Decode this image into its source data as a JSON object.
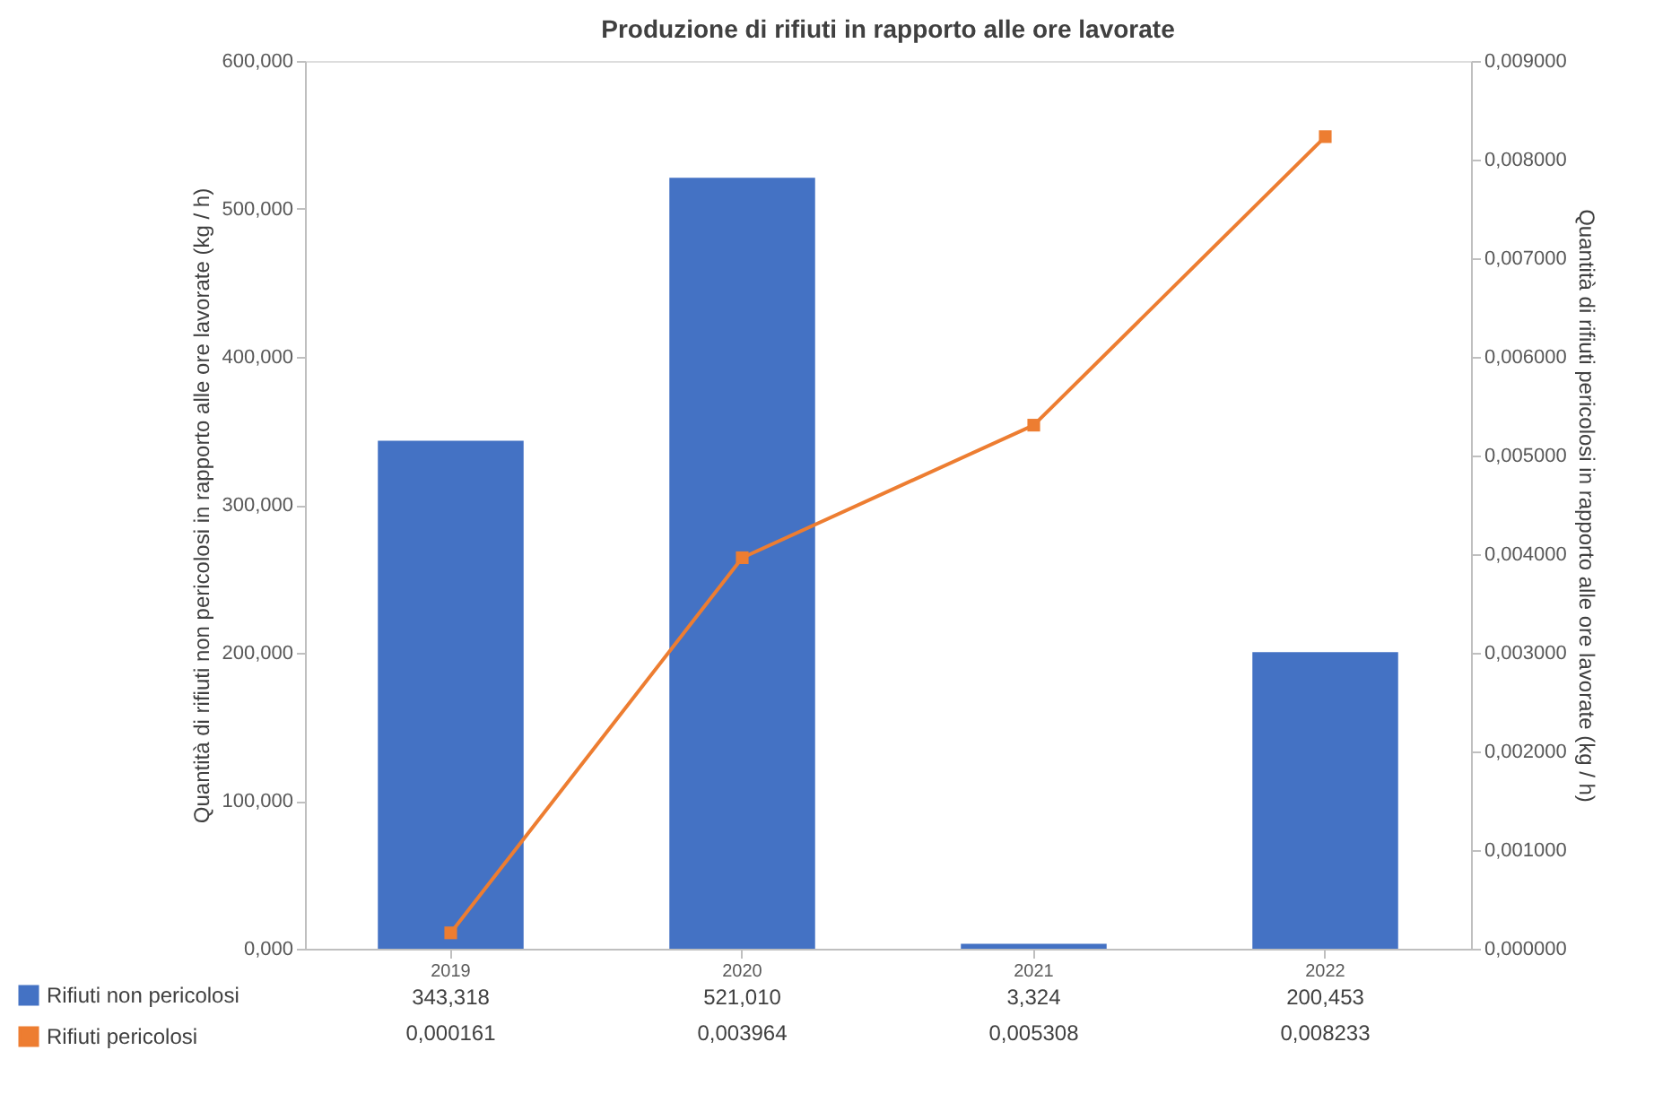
{
  "chart_data": {
    "type": "bar",
    "title": "Produzione di rifiuti in rapporto alle ore lavorate",
    "categories": [
      "2019",
      "2020",
      "2021",
      "2022"
    ],
    "ylabel": "Quantità di rifiuti non pericolosi in rapporto alle ore lavorate (kg / h)",
    "y2label": "Quantità di rifiuti pericolosi in rapporto alle ore lavorate (kg / h)",
    "series": [
      {
        "name": "Rifiuti non pericolosi",
        "color": "#4472c4",
        "values": [
          343.318,
          521.01,
          3.324,
          200.453
        ],
        "value_labels": [
          "343,318",
          "521,010",
          "3,324",
          "200,453"
        ]
      },
      {
        "name": "Rifiuti pericolosi",
        "type": "line",
        "axis": "y2",
        "color": "#ed7d31",
        "marker": "square",
        "values": [
          0.000161,
          0.003964,
          0.005308,
          0.008233
        ],
        "value_labels": [
          "0,000161",
          "0,003964",
          "0,005308",
          "0,008233"
        ]
      }
    ],
    "ylim": [
      0,
      600
    ],
    "yticks": [
      {
        "value": 0,
        "label": "0,000"
      },
      {
        "value": 100,
        "label": "100,000"
      },
      {
        "value": 200,
        "label": "200,000"
      },
      {
        "value": 300,
        "label": "300,000"
      },
      {
        "value": 400,
        "label": "400,000"
      },
      {
        "value": 500,
        "label": "500,000"
      },
      {
        "value": 600,
        "label": "600,000"
      }
    ],
    "y2lim": [
      0,
      0.009
    ],
    "y2ticks": [
      {
        "value": 0,
        "label": "0,000000"
      },
      {
        "value": 0.001,
        "label": "0,001000"
      },
      {
        "value": 0.002,
        "label": "0,002000"
      },
      {
        "value": 0.003,
        "label": "0,003000"
      },
      {
        "value": 0.004,
        "label": "0,004000"
      },
      {
        "value": 0.005,
        "label": "0,005000"
      },
      {
        "value": 0.006,
        "label": "0,006000"
      },
      {
        "value": 0.007,
        "label": "0,007000"
      },
      {
        "value": 0.008,
        "label": "0,008000"
      },
      {
        "value": 0.009,
        "label": "0,009000"
      }
    ],
    "grid": false,
    "legend": "bottom left"
  }
}
